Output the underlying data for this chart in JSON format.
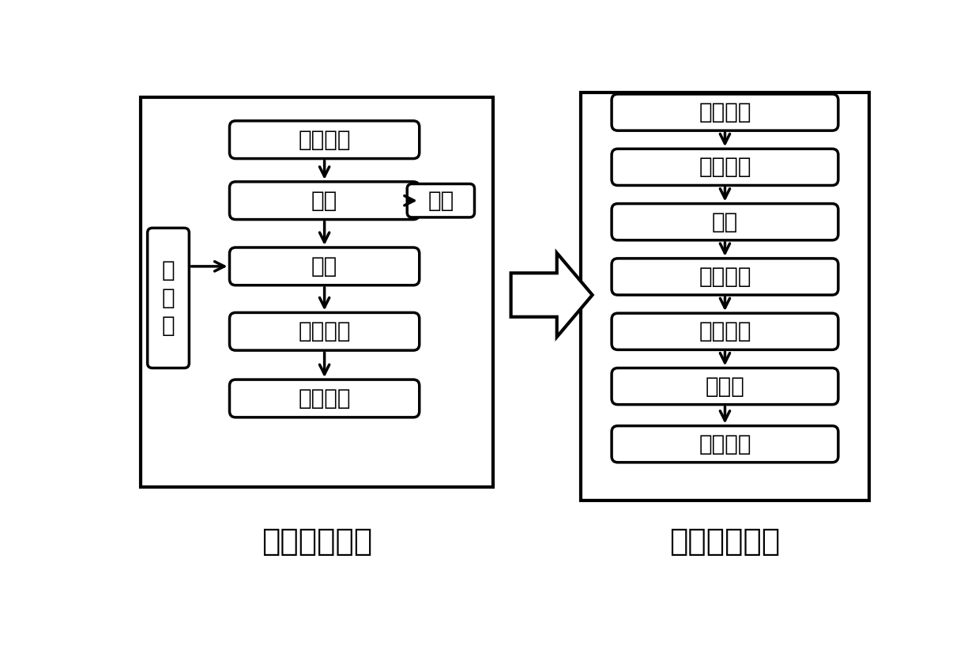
{
  "left_boxes": [
    "二胺溶解",
    "缩聚",
    "中和",
    "芳纶树脂",
    "脱泡过滤"
  ],
  "right_boxes": [
    "凝固成型",
    "热水牵伸",
    "水洗",
    "烘干上油",
    "干热拉伸",
    "热定型",
    "上油收卷"
  ],
  "side_box_left": "中\n和\n剂",
  "side_box_right": "酰氯",
  "left_label": "纺丝原液制备",
  "right_label": "纺丝纤维制备",
  "bg_color": "#ffffff",
  "box_color": "#ffffff",
  "border_color": "#000000",
  "text_color": "#000000",
  "font_size": 20,
  "label_font_size": 28,
  "lw": 2.5
}
